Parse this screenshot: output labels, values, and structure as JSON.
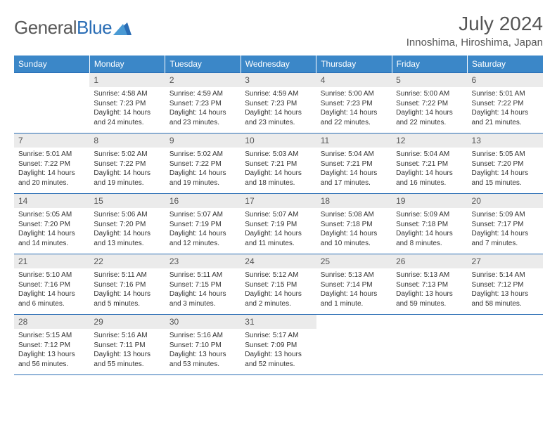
{
  "logo": {
    "word1": "General",
    "word2": "Blue"
  },
  "title": "July 2024",
  "location": "Innoshima, Hiroshima, Japan",
  "colors": {
    "header_bg": "#3b87c8",
    "accent_line": "#2a6db5",
    "daynum_bg": "#ebebeb",
    "page_bg": "#ffffff",
    "text": "#333333",
    "muted": "#555555",
    "logo_gray": "#5a5a5a",
    "logo_blue": "#2a6db5"
  },
  "days_of_week": [
    "Sunday",
    "Monday",
    "Tuesday",
    "Wednesday",
    "Thursday",
    "Friday",
    "Saturday"
  ],
  "weeks": [
    [
      null,
      {
        "n": "1",
        "sr": "Sunrise: 4:58 AM",
        "ss": "Sunset: 7:23 PM",
        "d1": "Daylight: 14 hours",
        "d2": "and 24 minutes."
      },
      {
        "n": "2",
        "sr": "Sunrise: 4:59 AM",
        "ss": "Sunset: 7:23 PM",
        "d1": "Daylight: 14 hours",
        "d2": "and 23 minutes."
      },
      {
        "n": "3",
        "sr": "Sunrise: 4:59 AM",
        "ss": "Sunset: 7:23 PM",
        "d1": "Daylight: 14 hours",
        "d2": "and 23 minutes."
      },
      {
        "n": "4",
        "sr": "Sunrise: 5:00 AM",
        "ss": "Sunset: 7:23 PM",
        "d1": "Daylight: 14 hours",
        "d2": "and 22 minutes."
      },
      {
        "n": "5",
        "sr": "Sunrise: 5:00 AM",
        "ss": "Sunset: 7:22 PM",
        "d1": "Daylight: 14 hours",
        "d2": "and 22 minutes."
      },
      {
        "n": "6",
        "sr": "Sunrise: 5:01 AM",
        "ss": "Sunset: 7:22 PM",
        "d1": "Daylight: 14 hours",
        "d2": "and 21 minutes."
      }
    ],
    [
      {
        "n": "7",
        "sr": "Sunrise: 5:01 AM",
        "ss": "Sunset: 7:22 PM",
        "d1": "Daylight: 14 hours",
        "d2": "and 20 minutes."
      },
      {
        "n": "8",
        "sr": "Sunrise: 5:02 AM",
        "ss": "Sunset: 7:22 PM",
        "d1": "Daylight: 14 hours",
        "d2": "and 19 minutes."
      },
      {
        "n": "9",
        "sr": "Sunrise: 5:02 AM",
        "ss": "Sunset: 7:22 PM",
        "d1": "Daylight: 14 hours",
        "d2": "and 19 minutes."
      },
      {
        "n": "10",
        "sr": "Sunrise: 5:03 AM",
        "ss": "Sunset: 7:21 PM",
        "d1": "Daylight: 14 hours",
        "d2": "and 18 minutes."
      },
      {
        "n": "11",
        "sr": "Sunrise: 5:04 AM",
        "ss": "Sunset: 7:21 PM",
        "d1": "Daylight: 14 hours",
        "d2": "and 17 minutes."
      },
      {
        "n": "12",
        "sr": "Sunrise: 5:04 AM",
        "ss": "Sunset: 7:21 PM",
        "d1": "Daylight: 14 hours",
        "d2": "and 16 minutes."
      },
      {
        "n": "13",
        "sr": "Sunrise: 5:05 AM",
        "ss": "Sunset: 7:20 PM",
        "d1": "Daylight: 14 hours",
        "d2": "and 15 minutes."
      }
    ],
    [
      {
        "n": "14",
        "sr": "Sunrise: 5:05 AM",
        "ss": "Sunset: 7:20 PM",
        "d1": "Daylight: 14 hours",
        "d2": "and 14 minutes."
      },
      {
        "n": "15",
        "sr": "Sunrise: 5:06 AM",
        "ss": "Sunset: 7:20 PM",
        "d1": "Daylight: 14 hours",
        "d2": "and 13 minutes."
      },
      {
        "n": "16",
        "sr": "Sunrise: 5:07 AM",
        "ss": "Sunset: 7:19 PM",
        "d1": "Daylight: 14 hours",
        "d2": "and 12 minutes."
      },
      {
        "n": "17",
        "sr": "Sunrise: 5:07 AM",
        "ss": "Sunset: 7:19 PM",
        "d1": "Daylight: 14 hours",
        "d2": "and 11 minutes."
      },
      {
        "n": "18",
        "sr": "Sunrise: 5:08 AM",
        "ss": "Sunset: 7:18 PM",
        "d1": "Daylight: 14 hours",
        "d2": "and 10 minutes."
      },
      {
        "n": "19",
        "sr": "Sunrise: 5:09 AM",
        "ss": "Sunset: 7:18 PM",
        "d1": "Daylight: 14 hours",
        "d2": "and 8 minutes."
      },
      {
        "n": "20",
        "sr": "Sunrise: 5:09 AM",
        "ss": "Sunset: 7:17 PM",
        "d1": "Daylight: 14 hours",
        "d2": "and 7 minutes."
      }
    ],
    [
      {
        "n": "21",
        "sr": "Sunrise: 5:10 AM",
        "ss": "Sunset: 7:16 PM",
        "d1": "Daylight: 14 hours",
        "d2": "and 6 minutes."
      },
      {
        "n": "22",
        "sr": "Sunrise: 5:11 AM",
        "ss": "Sunset: 7:16 PM",
        "d1": "Daylight: 14 hours",
        "d2": "and 5 minutes."
      },
      {
        "n": "23",
        "sr": "Sunrise: 5:11 AM",
        "ss": "Sunset: 7:15 PM",
        "d1": "Daylight: 14 hours",
        "d2": "and 3 minutes."
      },
      {
        "n": "24",
        "sr": "Sunrise: 5:12 AM",
        "ss": "Sunset: 7:15 PM",
        "d1": "Daylight: 14 hours",
        "d2": "and 2 minutes."
      },
      {
        "n": "25",
        "sr": "Sunrise: 5:13 AM",
        "ss": "Sunset: 7:14 PM",
        "d1": "Daylight: 14 hours",
        "d2": "and 1 minute."
      },
      {
        "n": "26",
        "sr": "Sunrise: 5:13 AM",
        "ss": "Sunset: 7:13 PM",
        "d1": "Daylight: 13 hours",
        "d2": "and 59 minutes."
      },
      {
        "n": "27",
        "sr": "Sunrise: 5:14 AM",
        "ss": "Sunset: 7:12 PM",
        "d1": "Daylight: 13 hours",
        "d2": "and 58 minutes."
      }
    ],
    [
      {
        "n": "28",
        "sr": "Sunrise: 5:15 AM",
        "ss": "Sunset: 7:12 PM",
        "d1": "Daylight: 13 hours",
        "d2": "and 56 minutes."
      },
      {
        "n": "29",
        "sr": "Sunrise: 5:16 AM",
        "ss": "Sunset: 7:11 PM",
        "d1": "Daylight: 13 hours",
        "d2": "and 55 minutes."
      },
      {
        "n": "30",
        "sr": "Sunrise: 5:16 AM",
        "ss": "Sunset: 7:10 PM",
        "d1": "Daylight: 13 hours",
        "d2": "and 53 minutes."
      },
      {
        "n": "31",
        "sr": "Sunrise: 5:17 AM",
        "ss": "Sunset: 7:09 PM",
        "d1": "Daylight: 13 hours",
        "d2": "and 52 minutes."
      },
      null,
      null,
      null
    ]
  ]
}
